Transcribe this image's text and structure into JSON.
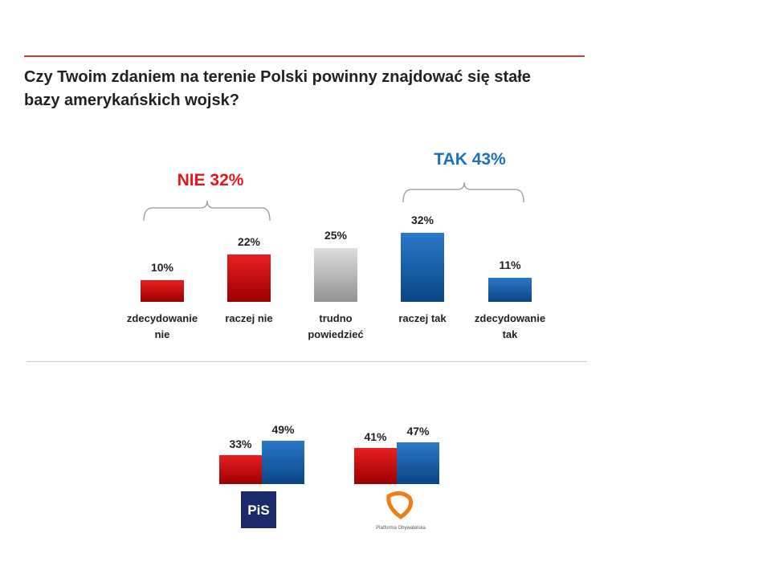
{
  "chart_data": [
    {
      "type": "bar",
      "title": "Czy Twoim zdaniem na terenie Polski powinny znajdować się stałe bazy amerykańskich wojsk?",
      "categories": [
        "zdecydowanie nie",
        "raczej nie",
        "trudno powiedzieć",
        "raczej tak",
        "zdecydowanie tak"
      ],
      "values": [
        10,
        22,
        25,
        32,
        11
      ],
      "value_labels": [
        "10%",
        "22%",
        "25%",
        "32%",
        "11%"
      ],
      "colors": [
        "#e60000",
        "#e60000",
        "#d9d9d9",
        "#0d66c2",
        "#0d66c2"
      ],
      "annotations": [
        {
          "text": "NIE 32%",
          "color": "#e8141b"
        },
        {
          "text": "TAK 43%",
          "color": "#1a6fc0"
        }
      ]
    },
    {
      "type": "grouped_bar",
      "categories": [
        "PiS",
        "Platforma Obywatelska"
      ],
      "series": [
        {
          "color": "#e60000",
          "values": [
            33,
            41
          ],
          "value_labels": [
            "33%",
            "41%"
          ]
        },
        {
          "color": "#0d66c2",
          "values": [
            49,
            47
          ],
          "value_labels": [
            "49%",
            "47%"
          ]
        }
      ]
    }
  ]
}
